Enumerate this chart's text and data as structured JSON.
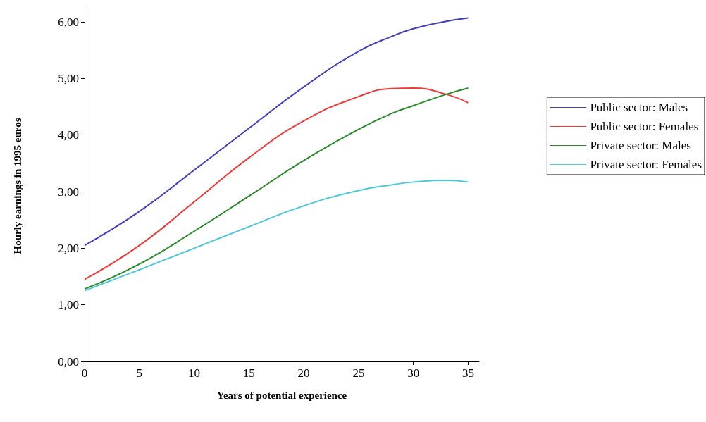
{
  "chart_data": {
    "type": "line",
    "xlabel": "Years of potential experience",
    "ylabel": "Hourly earnings in 1995 euros",
    "x": [
      0,
      5,
      10,
      15,
      20,
      25,
      28,
      30,
      33,
      35
    ],
    "series": [
      {
        "name": "Public sector: Males",
        "color": "#3f3fbf",
        "values": [
          2.05,
          2.65,
          3.38,
          4.12,
          4.85,
          5.48,
          5.74,
          5.88,
          6.01,
          6.07
        ]
      },
      {
        "name": "Public sector: Females",
        "color": "#f03a3a",
        "values": [
          1.45,
          2.05,
          2.82,
          3.6,
          4.25,
          4.68,
          4.82,
          4.83,
          4.72,
          4.57
        ]
      },
      {
        "name": "Private sector: Males",
        "color": "#2a8a2a",
        "values": [
          1.28,
          1.72,
          2.3,
          2.92,
          3.55,
          4.1,
          4.38,
          4.52,
          4.72,
          4.83
        ]
      },
      {
        "name": "Private sector: Females",
        "color": "#4cc8d8",
        "values": [
          1.25,
          1.62,
          2.0,
          2.38,
          2.75,
          3.02,
          3.12,
          3.17,
          3.2,
          3.17
        ]
      }
    ],
    "xlim": [
      0,
      36
    ],
    "xticks": [
      0,
      5,
      10,
      15,
      20,
      25,
      30,
      35
    ],
    "ylim": [
      0,
      6.2
    ],
    "yticks": [
      {
        "value": 0,
        "label": "0,00"
      },
      {
        "value": 1,
        "label": "1,00"
      },
      {
        "value": 2,
        "label": "2,00"
      },
      {
        "value": 3,
        "label": "3,00"
      },
      {
        "value": 4,
        "label": "4,00"
      },
      {
        "value": 5,
        "label": "5,00"
      },
      {
        "value": 6,
        "label": "6,00"
      }
    ],
    "grid": false,
    "legend": "right",
    "marker": "none",
    "line_style": "solid"
  }
}
